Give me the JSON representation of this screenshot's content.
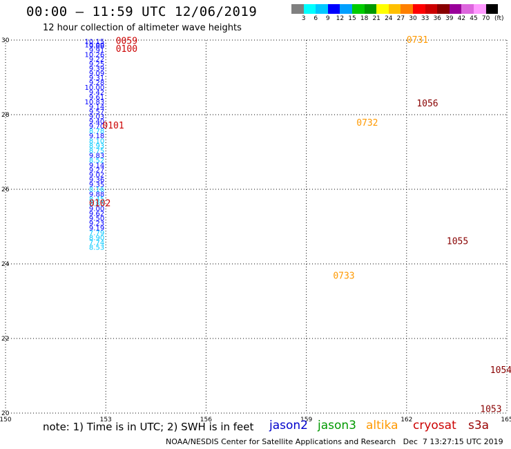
{
  "header": {
    "title": "00:00 – 11:59 UTC 12/06/2019",
    "subtitle": "12 hour collection of altimeter wave heights",
    "unit_label": "(ft)"
  },
  "colorbar": {
    "colors": [
      "#808080",
      "#00ffff",
      "#00c8ff",
      "#0000ff",
      "#00a0ff",
      "#00cc00",
      "#009900",
      "#ffff00",
      "#ffc000",
      "#ff8000",
      "#ff0000",
      "#cc0000",
      "#880000",
      "#990099",
      "#dd66dd",
      "#ff99ff",
      "#000000"
    ],
    "ticks": [
      "3",
      "6",
      "9",
      "12",
      "15",
      "18",
      "21",
      "24",
      "27",
      "30",
      "33",
      "36",
      "39",
      "42",
      "45",
      "70"
    ]
  },
  "footer": {
    "note": "note: 1) Time is in UTC; 2) SWH is in feet",
    "satellites": [
      {
        "name": "jason2",
        "color": "#0000cc"
      },
      {
        "name": "jason3",
        "color": "#009900"
      },
      {
        "name": "altika",
        "color": "#ff9900"
      },
      {
        "name": "cryosat",
        "color": "#cc0000"
      },
      {
        "name": "s3a",
        "color": "#990000"
      }
    ],
    "credit": "NOAA/NESDIS Center for Satellite Applications and Research   Dec  7 13:27:15 UTC 2019"
  },
  "chart_data": {
    "type": "scatter",
    "xlim": [
      150,
      165
    ],
    "ylim": [
      20,
      30
    ],
    "xticks": [
      "150",
      "153",
      "156",
      "159",
      "162",
      "165"
    ],
    "yticks": [
      "20",
      "22",
      "24",
      "26",
      "28",
      "30"
    ],
    "grid": true,
    "series": [
      {
        "name": "jason2",
        "color_by_value": true,
        "points": [
          {
            "x": 153.0,
            "y": 29.97,
            "v": "10.15"
          },
          {
            "x": 153.0,
            "y": 29.88,
            "v": "10.00"
          },
          {
            "x": 153.0,
            "y": 29.85,
            "v": "9.88"
          },
          {
            "x": 153.0,
            "y": 29.74,
            "v": "9.91"
          },
          {
            "x": 153.0,
            "y": 29.62,
            "v": "10.26"
          },
          {
            "x": 153.0,
            "y": 29.5,
            "v": "9.22"
          },
          {
            "x": 153.0,
            "y": 29.37,
            "v": "9.25"
          },
          {
            "x": 153.0,
            "y": 29.25,
            "v": "9.39"
          },
          {
            "x": 153.0,
            "y": 29.12,
            "v": "9.09"
          },
          {
            "x": 153.0,
            "y": 29.0,
            "v": "9.31"
          },
          {
            "x": 153.0,
            "y": 28.87,
            "v": "9.28"
          },
          {
            "x": 153.0,
            "y": 28.74,
            "v": "10.00"
          },
          {
            "x": 153.0,
            "y": 28.61,
            "v": "9.42"
          },
          {
            "x": 153.0,
            "y": 28.48,
            "v": "9.61"
          },
          {
            "x": 153.0,
            "y": 28.35,
            "v": "10.83"
          },
          {
            "x": 153.0,
            "y": 28.22,
            "v": "9.14"
          },
          {
            "x": 153.0,
            "y": 28.09,
            "v": "9.57"
          },
          {
            "x": 153.0,
            "y": 27.96,
            "v": "9.03"
          },
          {
            "x": 153.0,
            "y": 27.83,
            "v": "9.40"
          },
          {
            "x": 153.0,
            "y": 27.7,
            "v": "9.70"
          },
          {
            "x": 153.0,
            "y": 27.57,
            "v": "8.78"
          },
          {
            "x": 153.0,
            "y": 27.44,
            "v": "9.18"
          },
          {
            "x": 153.0,
            "y": 27.31,
            "v": "8.10"
          },
          {
            "x": 153.0,
            "y": 27.18,
            "v": "8.93"
          },
          {
            "x": 153.0,
            "y": 27.05,
            "v": "8.75"
          },
          {
            "x": 153.0,
            "y": 26.92,
            "v": "9.83"
          },
          {
            "x": 153.0,
            "y": 26.79,
            "v": "8.52"
          },
          {
            "x": 153.0,
            "y": 26.66,
            "v": "9.14"
          },
          {
            "x": 153.0,
            "y": 26.53,
            "v": "9.27"
          },
          {
            "x": 153.0,
            "y": 26.4,
            "v": "9.02"
          },
          {
            "x": 153.0,
            "y": 26.27,
            "v": "9.36"
          },
          {
            "x": 153.0,
            "y": 26.14,
            "v": "9.35"
          },
          {
            "x": 153.0,
            "y": 26.01,
            "v": "8.16"
          },
          {
            "x": 153.0,
            "y": 25.88,
            "v": "9.88"
          },
          {
            "x": 153.0,
            "y": 25.75,
            "v": "8.45"
          },
          {
            "x": 153.0,
            "y": 25.62,
            "v": "8.85"
          },
          {
            "x": 153.0,
            "y": 25.49,
            "v": "9.00"
          },
          {
            "x": 153.0,
            "y": 25.36,
            "v": "9.62"
          },
          {
            "x": 153.0,
            "y": 25.23,
            "v": "9.50"
          },
          {
            "x": 153.0,
            "y": 25.1,
            "v": "9.23"
          },
          {
            "x": 153.0,
            "y": 24.97,
            "v": "9.19"
          },
          {
            "x": 153.0,
            "y": 24.84,
            "v": "7.79"
          },
          {
            "x": 153.0,
            "y": 24.71,
            "v": "8.90"
          },
          {
            "x": 153.0,
            "y": 24.58,
            "v": "7.74"
          },
          {
            "x": 153.0,
            "y": 24.45,
            "v": "8.53"
          }
        ]
      }
    ],
    "time_labels": [
      {
        "x": 153.3,
        "y": 29.97,
        "text": "0059",
        "color": "#cc0000"
      },
      {
        "x": 153.3,
        "y": 29.76,
        "text": "0100",
        "color": "#cc0000"
      },
      {
        "x": 152.9,
        "y": 27.7,
        "text": "0101",
        "color": "#cc0000"
      },
      {
        "x": 152.5,
        "y": 25.62,
        "text": "0102",
        "color": "#cc0000"
      },
      {
        "x": 162.0,
        "y": 30.0,
        "text": "0731",
        "color": "#ff9900"
      },
      {
        "x": 160.5,
        "y": 27.78,
        "text": "0732",
        "color": "#ff9900"
      },
      {
        "x": 159.8,
        "y": 23.68,
        "text": "0733",
        "color": "#ff9900"
      },
      {
        "x": 162.3,
        "y": 28.3,
        "text": "1056",
        "color": "#880000"
      },
      {
        "x": 163.2,
        "y": 24.6,
        "text": "1055",
        "color": "#880000"
      },
      {
        "x": 164.5,
        "y": 21.15,
        "text": "1054",
        "color": "#880000"
      },
      {
        "x": 164.2,
        "y": 20.1,
        "text": "1053",
        "color": "#880000"
      }
    ]
  }
}
